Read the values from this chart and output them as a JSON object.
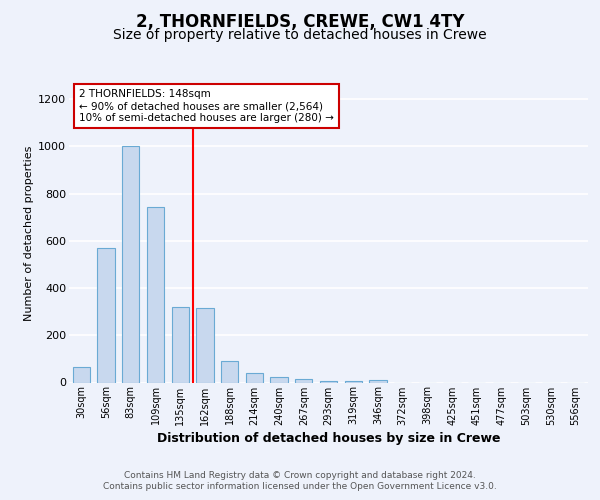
{
  "title1": "2, THORNFIELDS, CREWE, CW1 4TY",
  "title2": "Size of property relative to detached houses in Crewe",
  "xlabel": "Distribution of detached houses by size in Crewe",
  "ylabel": "Number of detached properties",
  "categories": [
    "30sqm",
    "56sqm",
    "83sqm",
    "109sqm",
    "135sqm",
    "162sqm",
    "188sqm",
    "214sqm",
    "240sqm",
    "267sqm",
    "293sqm",
    "319sqm",
    "346sqm",
    "372sqm",
    "398sqm",
    "425sqm",
    "451sqm",
    "477sqm",
    "503sqm",
    "530sqm",
    "556sqm"
  ],
  "values": [
    65,
    570,
    1000,
    745,
    320,
    315,
    93,
    42,
    22,
    14,
    5,
    5,
    10,
    0,
    0,
    0,
    0,
    0,
    0,
    0,
    0
  ],
  "bar_color": "#c8d8ee",
  "bar_edge_color": "#6aaad4",
  "red_line_x": 5,
  "annotation_text": "2 THORNFIELDS: 148sqm\n← 90% of detached houses are smaller (2,564)\n10% of semi-detached houses are larger (280) →",
  "annotation_box_color": "#ffffff",
  "annotation_box_edge": "#cc0000",
  "footer1": "Contains HM Land Registry data © Crown copyright and database right 2024.",
  "footer2": "Contains public sector information licensed under the Open Government Licence v3.0.",
  "ylim": [
    0,
    1260
  ],
  "yticks": [
    0,
    200,
    400,
    600,
    800,
    1000,
    1200
  ],
  "bg_color": "#eef2fb",
  "plot_bg_color": "#eef2fb",
  "grid_color": "#ffffff",
  "title1_fontsize": 12,
  "title2_fontsize": 10,
  "bar_width": 0.7
}
